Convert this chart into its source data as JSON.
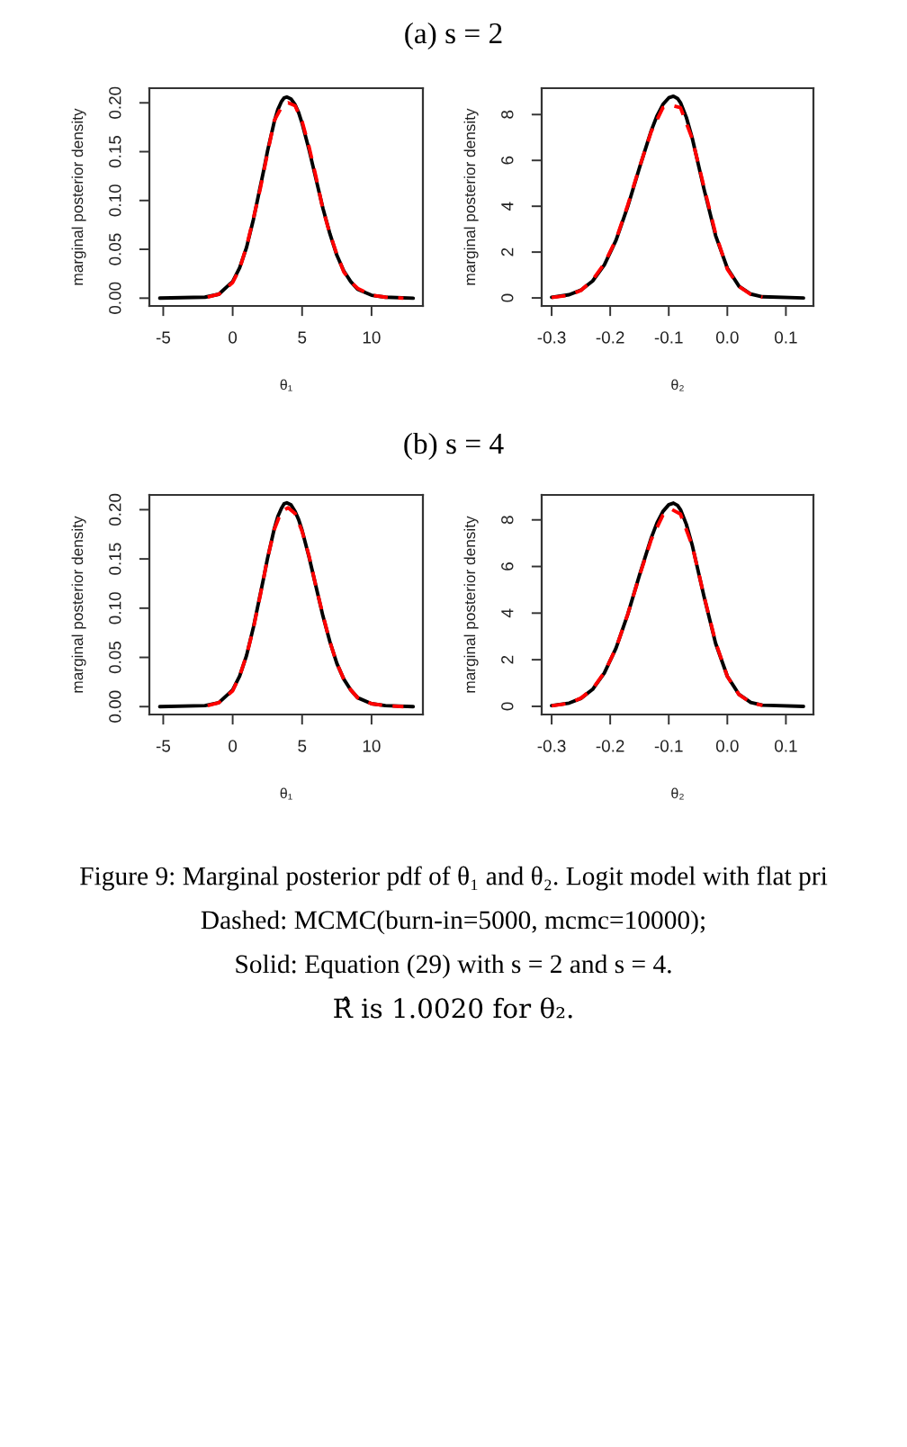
{
  "chart_data": [
    {
      "type": "line",
      "title": "(a) s = 2",
      "xlabel": "θ₁",
      "ylabel": "marginal posterior density",
      "xlim": [
        -6.0,
        13.7
      ],
      "xticks": [
        -5,
        0,
        5,
        10
      ],
      "ylim": [
        -0.008,
        0.215
      ],
      "yticks": [
        {
          "value": 0,
          "label": "0.00"
        },
        {
          "value": 0.05,
          "label": "0.05"
        },
        {
          "value": 0.1,
          "label": "0.10"
        },
        {
          "value": 0.15,
          "label": "0.15"
        },
        {
          "value": 0.2,
          "label": "0.20"
        }
      ],
      "series": [
        {
          "color": "#000000",
          "line_style": "solid",
          "x": [
            -5.25,
            -2,
            -1,
            0,
            0.5,
            1,
            1.5,
            2,
            2.25,
            2.5,
            3,
            3.25,
            3.5,
            3.7,
            3.9,
            4.2,
            4.5,
            4.75,
            5,
            5.5,
            6,
            6.5,
            7,
            7.5,
            8,
            8.5,
            9,
            10,
            11,
            13
          ],
          "values": [
            0,
            0.001,
            0.004,
            0.017,
            0.031,
            0.052,
            0.081,
            0.115,
            0.132,
            0.15,
            0.181,
            0.193,
            0.201,
            0.205,
            0.206,
            0.204,
            0.198,
            0.19,
            0.179,
            0.152,
            0.122,
            0.092,
            0.066,
            0.044,
            0.028,
            0.017,
            0.009,
            0.003,
            0.001,
            0
          ]
        },
        {
          "color": "#ff0000",
          "line_style": "dashed",
          "x": [
            -1.8,
            -1,
            0,
            0.5,
            1,
            1.5,
            2,
            2.5,
            3,
            3.5,
            4,
            4.5,
            5,
            5.5,
            6,
            6.5,
            7,
            7.5,
            8,
            8.5,
            9,
            10,
            11,
            12.3
          ],
          "values": [
            0.001,
            0.004,
            0.016,
            0.03,
            0.053,
            0.082,
            0.113,
            0.148,
            0.182,
            0.195,
            0.2,
            0.197,
            0.181,
            0.155,
            0.124,
            0.091,
            0.066,
            0.045,
            0.027,
            0.017,
            0.01,
            0.003,
            0.001,
            0
          ]
        }
      ]
    },
    {
      "type": "line",
      "xlabel": "θ₂",
      "ylabel": "marginal posterior density",
      "xlim": [
        -0.317,
        0.147
      ],
      "xticks": [
        -0.3,
        -0.2,
        -0.1,
        {
          "value": 0,
          "label": "0.0"
        },
        0.1
      ],
      "ylim": [
        -0.35,
        9.15
      ],
      "yticks": [
        0,
        2,
        4,
        6,
        8
      ],
      "series": [
        {
          "color": "#000000",
          "line_style": "solid",
          "x": [
            -0.3,
            -0.27,
            -0.25,
            -0.23,
            -0.21,
            -0.19,
            -0.17,
            -0.15,
            -0.13,
            -0.12,
            -0.11,
            -0.1,
            -0.092,
            -0.085,
            -0.08,
            -0.07,
            -0.06,
            -0.04,
            -0.02,
            0,
            0.02,
            0.04,
            0.06,
            0.13
          ],
          "values": [
            0.03,
            0.14,
            0.34,
            0.74,
            1.44,
            2.52,
            3.99,
            5.68,
            7.29,
            7.95,
            8.44,
            8.73,
            8.8,
            8.7,
            8.52,
            7.88,
            6.98,
            4.77,
            2.72,
            1.3,
            0.51,
            0.17,
            0.05,
            0
          ]
        },
        {
          "color": "#ff0000",
          "line_style": "dashed",
          "x": [
            -0.3,
            -0.27,
            -0.25,
            -0.23,
            -0.21,
            -0.19,
            -0.17,
            -0.15,
            -0.13,
            -0.11,
            -0.095,
            -0.08,
            -0.06,
            -0.04,
            -0.02,
            0,
            0.02,
            0.04,
            0.06
          ],
          "values": [
            0.02,
            0.12,
            0.33,
            0.78,
            1.5,
            2.55,
            4.05,
            5.7,
            7.25,
            8.3,
            8.4,
            8.3,
            6.95,
            4.85,
            2.8,
            1.25,
            0.5,
            0.15,
            0.03
          ]
        }
      ]
    },
    {
      "type": "line",
      "title": "(b) s = 4",
      "xlabel": "θ₁",
      "ylabel": "marginal posterior density",
      "xlim": [
        -6.0,
        13.7
      ],
      "xticks": [
        -5,
        0,
        5,
        10
      ],
      "ylim": [
        -0.008,
        0.215
      ],
      "yticks": [
        {
          "value": 0,
          "label": "0.00"
        },
        {
          "value": 0.05,
          "label": "0.05"
        },
        {
          "value": 0.1,
          "label": "0.10"
        },
        {
          "value": 0.15,
          "label": "0.15"
        },
        {
          "value": 0.2,
          "label": "0.20"
        }
      ],
      "series": [
        {
          "color": "#000000",
          "line_style": "solid",
          "x": [
            -5.25,
            -2,
            -1,
            0,
            0.5,
            1,
            1.5,
            2,
            2.25,
            2.5,
            3,
            3.25,
            3.5,
            3.7,
            3.9,
            4.2,
            4.5,
            4.75,
            5,
            5.5,
            6,
            6.5,
            7,
            7.5,
            8,
            8.5,
            9,
            10,
            11,
            13
          ],
          "values": [
            0,
            0.001,
            0.004,
            0.017,
            0.031,
            0.052,
            0.081,
            0.115,
            0.132,
            0.15,
            0.181,
            0.193,
            0.201,
            0.206,
            0.207,
            0.205,
            0.198,
            0.19,
            0.179,
            0.152,
            0.122,
            0.092,
            0.066,
            0.044,
            0.028,
            0.017,
            0.009,
            0.003,
            0.001,
            0
          ]
        },
        {
          "color": "#ff0000",
          "line_style": "dashed",
          "x": [
            -1.8,
            -1,
            0,
            0.5,
            1,
            1.5,
            2,
            2.5,
            3,
            3.5,
            4,
            4.5,
            5,
            5.5,
            6,
            6.5,
            7,
            7.5,
            8,
            8.5,
            9,
            10,
            11,
            12.3
          ],
          "values": [
            0.001,
            0.004,
            0.016,
            0.031,
            0.052,
            0.08,
            0.114,
            0.15,
            0.18,
            0.198,
            0.202,
            0.196,
            0.178,
            0.153,
            0.122,
            0.093,
            0.066,
            0.044,
            0.028,
            0.017,
            0.009,
            0.003,
            0.001,
            0
          ]
        }
      ]
    },
    {
      "type": "line",
      "xlabel": "θ₂",
      "ylabel": "marginal posterior density",
      "xlim": [
        -0.317,
        0.147
      ],
      "xticks": [
        -0.3,
        -0.2,
        -0.1,
        {
          "value": 0,
          "label": "0.0"
        },
        0.1
      ],
      "ylim": [
        -0.35,
        9.07
      ],
      "yticks": [
        0,
        2,
        4,
        6,
        8
      ],
      "series": [
        {
          "color": "#000000",
          "line_style": "solid",
          "x": [
            -0.3,
            -0.27,
            -0.25,
            -0.23,
            -0.21,
            -0.19,
            -0.17,
            -0.15,
            -0.13,
            -0.12,
            -0.11,
            -0.1,
            -0.092,
            -0.085,
            -0.08,
            -0.07,
            -0.06,
            -0.04,
            -0.02,
            0,
            0.02,
            0.04,
            0.06,
            0.13
          ],
          "values": [
            0.03,
            0.14,
            0.34,
            0.73,
            1.43,
            2.5,
            3.95,
            5.63,
            7.22,
            7.88,
            8.36,
            8.65,
            8.72,
            8.62,
            8.44,
            7.81,
            6.92,
            4.73,
            2.7,
            1.29,
            0.51,
            0.17,
            0.05,
            0
          ]
        },
        {
          "color": "#ff0000",
          "line_style": "dashed",
          "x": [
            -0.3,
            -0.27,
            -0.25,
            -0.23,
            -0.21,
            -0.19,
            -0.17,
            -0.15,
            -0.13,
            -0.11,
            -0.095,
            -0.08,
            -0.06,
            -0.04,
            -0.02,
            0,
            0.02,
            0.04,
            0.06
          ],
          "values": [
            0.02,
            0.13,
            0.35,
            0.75,
            1.45,
            2.5,
            3.95,
            5.6,
            7.15,
            8.2,
            8.45,
            8.25,
            6.9,
            4.75,
            2.75,
            1.28,
            0.5,
            0.16,
            0.04
          ]
        }
      ],
      "annotations": [
        "Figure 9: Marginal posterior pdf of θ₁ and θ₂. Logit model with flat pri",
        "Dashed: MCMC(burn-in=5000, mcmc=10000);",
        "Solid: Equation (29) with s = 2 and s = 4.",
        "R̂ is 1.0020 for θ₂."
      ]
    }
  ]
}
